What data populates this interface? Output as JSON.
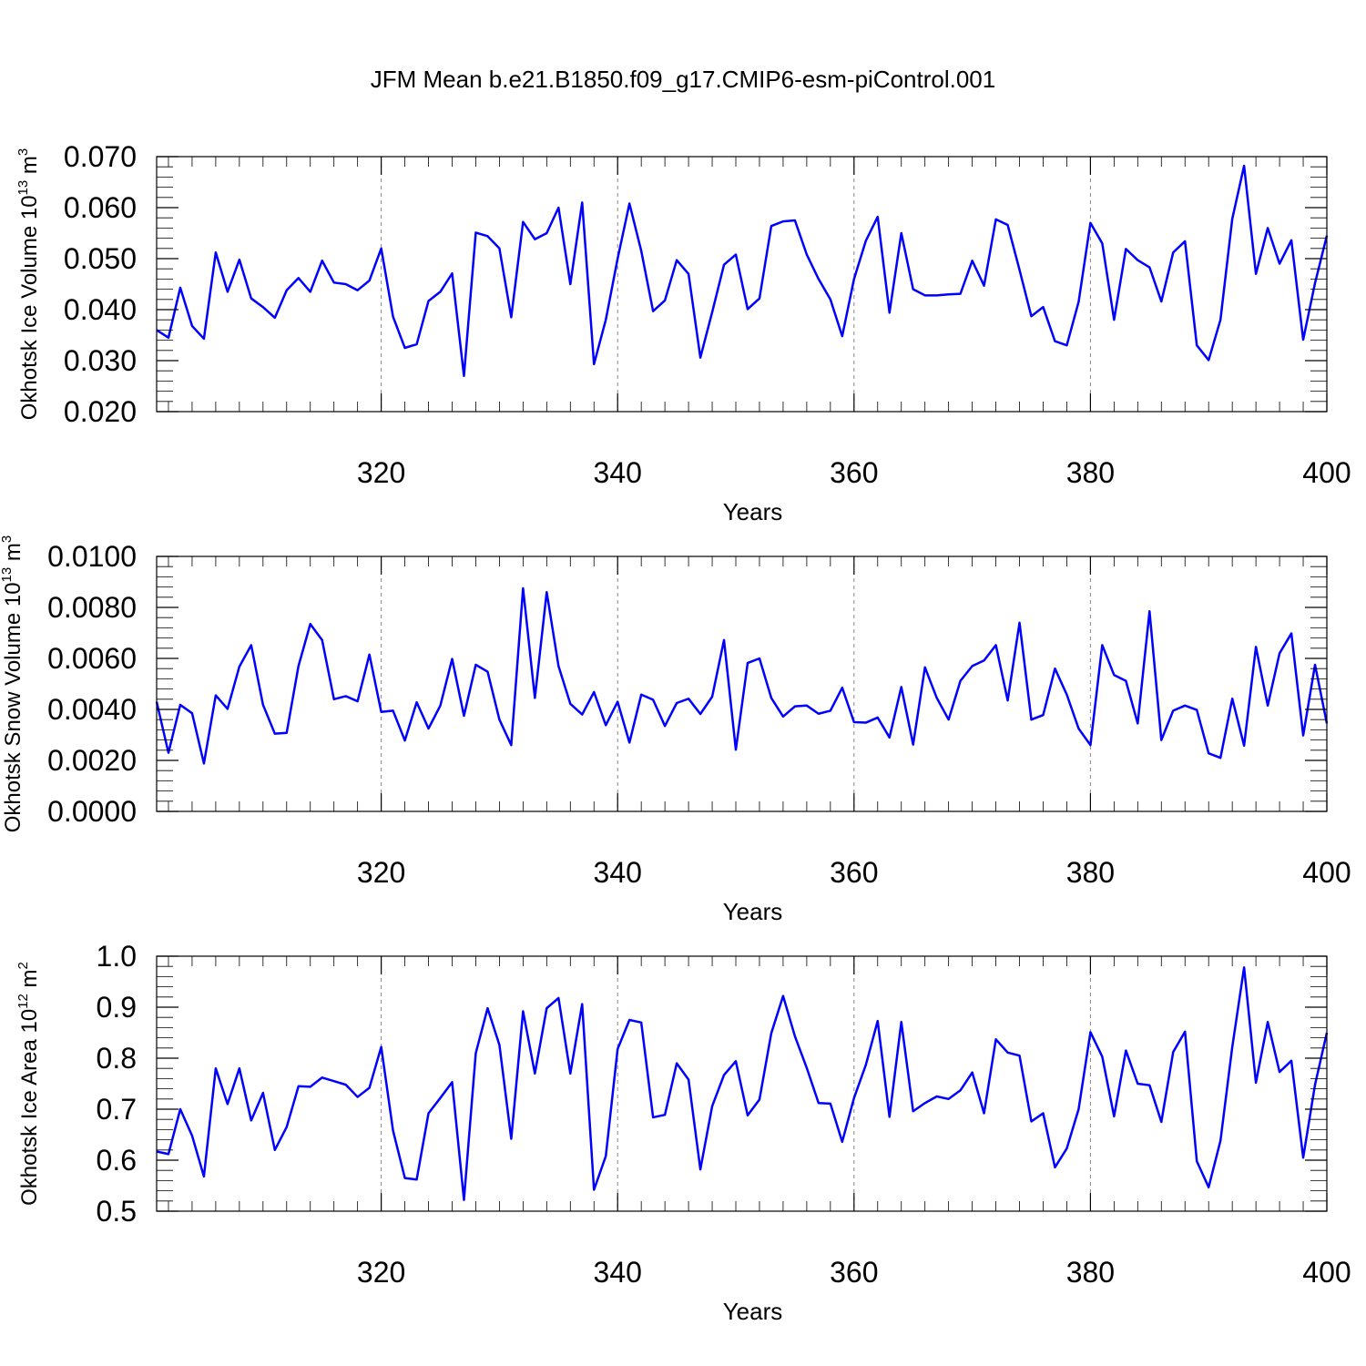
{
  "figure": {
    "title": "JFM Mean b.e21.B1850.f09_g17.CMIP6-esm-piControl.001"
  },
  "colors": {
    "line": "#0000ff",
    "axis": "#000000",
    "grid": "#888888"
  },
  "chart_data": [
    {
      "type": "line",
      "xlabel": "Years",
      "ylabel": {
        "text": "Okhotsk Ice Volume 10",
        "sup": "13",
        "unit": " m",
        "unit_sup": "3"
      },
      "xlim": [
        301,
        400
      ],
      "ylim": [
        0.02,
        0.07
      ],
      "xticks": [
        320,
        340,
        360,
        380,
        400
      ],
      "xtick_labels": [
        "320",
        "340",
        "360",
        "380",
        "400"
      ],
      "yticks": [
        0.02,
        0.03,
        0.04,
        0.05,
        0.06,
        0.07
      ],
      "ytick_labels": [
        "0.020",
        "0.030",
        "0.040",
        "0.050",
        "0.060",
        "0.070"
      ],
      "yminor_step": 0.002,
      "grid": "vertical dashed at major x ticks",
      "series": [
        {
          "x_start": 301,
          "x_step": 1,
          "values": [
            0.036,
            0.0345,
            0.0443,
            0.0368,
            0.0343,
            0.0512,
            0.0435,
            0.0498,
            0.0422,
            0.0405,
            0.0384,
            0.0438,
            0.0462,
            0.0435,
            0.0496,
            0.0453,
            0.045,
            0.0438,
            0.0457,
            0.052,
            0.0386,
            0.0325,
            0.0332,
            0.0417,
            0.0435,
            0.0471,
            0.027,
            0.0551,
            0.0544,
            0.052,
            0.0385,
            0.0572,
            0.0538,
            0.055,
            0.06,
            0.045,
            0.061,
            0.0293,
            0.038,
            0.05,
            0.0608,
            0.0515,
            0.0397,
            0.0418,
            0.0497,
            0.047,
            0.0306,
            0.0395,
            0.0488,
            0.0508,
            0.0401,
            0.0422,
            0.0564,
            0.0573,
            0.0575,
            0.0508,
            0.046,
            0.042,
            0.0348,
            0.046,
            0.0535,
            0.0582,
            0.0394,
            0.055,
            0.044,
            0.0428,
            0.0428,
            0.043,
            0.0431,
            0.0496,
            0.0447,
            0.0577,
            0.0566,
            0.0478,
            0.0387,
            0.0405,
            0.0338,
            0.033,
            0.0415,
            0.057,
            0.053,
            0.038,
            0.0519,
            0.0497,
            0.0483,
            0.0416,
            0.0512,
            0.0534,
            0.033,
            0.0301,
            0.038,
            0.0578,
            0.0682,
            0.047,
            0.056,
            0.049,
            0.0536,
            0.0341,
            0.0452,
            0.0545
          ]
        }
      ]
    },
    {
      "type": "line",
      "xlabel": "Years",
      "ylabel": {
        "text": "Okhotsk Snow Volume 10",
        "sup": "13",
        "unit": " m",
        "unit_sup": "3"
      },
      "xlim": [
        301,
        400
      ],
      "ylim": [
        0,
        0.01
      ],
      "xticks": [
        320,
        340,
        360,
        380,
        400
      ],
      "xtick_labels": [
        "320",
        "340",
        "360",
        "380",
        "400"
      ],
      "yticks": [
        0,
        0.002,
        0.004,
        0.006,
        0.008,
        0.01
      ],
      "ytick_labels": [
        "0.0000",
        "0.0020",
        "0.0040",
        "0.0060",
        "0.0080",
        "0.0100"
      ],
      "yminor_step": 0.0004,
      "grid": "vertical dashed at major x ticks",
      "series": [
        {
          "x_start": 301,
          "x_step": 1,
          "values": [
            0.0043,
            0.0023,
            0.00418,
            0.00385,
            0.00188,
            0.00455,
            0.00402,
            0.00568,
            0.00652,
            0.00418,
            0.00305,
            0.00308,
            0.0057,
            0.00735,
            0.00672,
            0.0044,
            0.00452,
            0.00432,
            0.00615,
            0.0039,
            0.00395,
            0.00278,
            0.00428,
            0.00325,
            0.00415,
            0.00598,
            0.00375,
            0.00575,
            0.00548,
            0.0036,
            0.0026,
            0.00875,
            0.00445,
            0.0086,
            0.0057,
            0.00422,
            0.0038,
            0.00468,
            0.00338,
            0.0043,
            0.0027,
            0.00458,
            0.00438,
            0.00335,
            0.00425,
            0.00442,
            0.00382,
            0.0045,
            0.00672,
            0.00242,
            0.00582,
            0.006,
            0.00445,
            0.00372,
            0.00412,
            0.00415,
            0.00383,
            0.00395,
            0.00485,
            0.0035,
            0.00348,
            0.00368,
            0.0029,
            0.00488,
            0.00262,
            0.00565,
            0.00445,
            0.0036,
            0.00512,
            0.0057,
            0.00592,
            0.00652,
            0.00435,
            0.0074,
            0.0036,
            0.00378,
            0.0056,
            0.00458,
            0.00325,
            0.0026,
            0.00652,
            0.00535,
            0.00512,
            0.00345,
            0.00785,
            0.0028,
            0.00395,
            0.00415,
            0.00398,
            0.00228,
            0.0021,
            0.00442,
            0.00258,
            0.00645,
            0.00415,
            0.0062,
            0.00698,
            0.00298,
            0.00575,
            0.00345
          ]
        }
      ]
    },
    {
      "type": "line",
      "xlabel": "Years",
      "ylabel": {
        "text": "Okhotsk Ice Area 10",
        "sup": "12",
        "unit": " m",
        "unit_sup": "2"
      },
      "xlim": [
        301,
        400
      ],
      "ylim": [
        0.5,
        1.0
      ],
      "xticks": [
        320,
        340,
        360,
        380,
        400
      ],
      "xtick_labels": [
        "320",
        "340",
        "360",
        "380",
        "400"
      ],
      "yticks": [
        0.5,
        0.6,
        0.7,
        0.8,
        0.9,
        1.0
      ],
      "ytick_labels": [
        "0.5",
        "0.6",
        "0.7",
        "0.8",
        "0.9",
        "1.0"
      ],
      "yminor_step": 0.02,
      "grid": "vertical dashed at major x ticks",
      "series": [
        {
          "x_start": 301,
          "x_step": 1,
          "values": [
            0.617,
            0.612,
            0.7,
            0.648,
            0.568,
            0.78,
            0.71,
            0.78,
            0.678,
            0.732,
            0.62,
            0.665,
            0.745,
            0.744,
            0.762,
            0.755,
            0.748,
            0.724,
            0.742,
            0.822,
            0.658,
            0.565,
            0.562,
            0.692,
            0.722,
            0.753,
            0.522,
            0.81,
            0.898,
            0.826,
            0.642,
            0.892,
            0.77,
            0.898,
            0.918,
            0.77,
            0.906,
            0.542,
            0.608,
            0.818,
            0.875,
            0.87,
            0.684,
            0.689,
            0.79,
            0.758,
            0.582,
            0.706,
            0.767,
            0.794,
            0.688,
            0.719,
            0.849,
            0.922,
            0.843,
            0.781,
            0.712,
            0.711,
            0.636,
            0.722,
            0.787,
            0.873,
            0.685,
            0.871,
            0.696,
            0.712,
            0.725,
            0.72,
            0.737,
            0.772,
            0.692,
            0.837,
            0.811,
            0.805,
            0.676,
            0.692,
            0.586,
            0.623,
            0.7,
            0.851,
            0.803,
            0.686,
            0.815,
            0.75,
            0.747,
            0.675,
            0.812,
            0.852,
            0.598,
            0.547,
            0.638,
            0.822,
            0.978,
            0.752,
            0.871,
            0.773,
            0.795,
            0.605,
            0.748,
            0.85
          ]
        }
      ]
    }
  ]
}
